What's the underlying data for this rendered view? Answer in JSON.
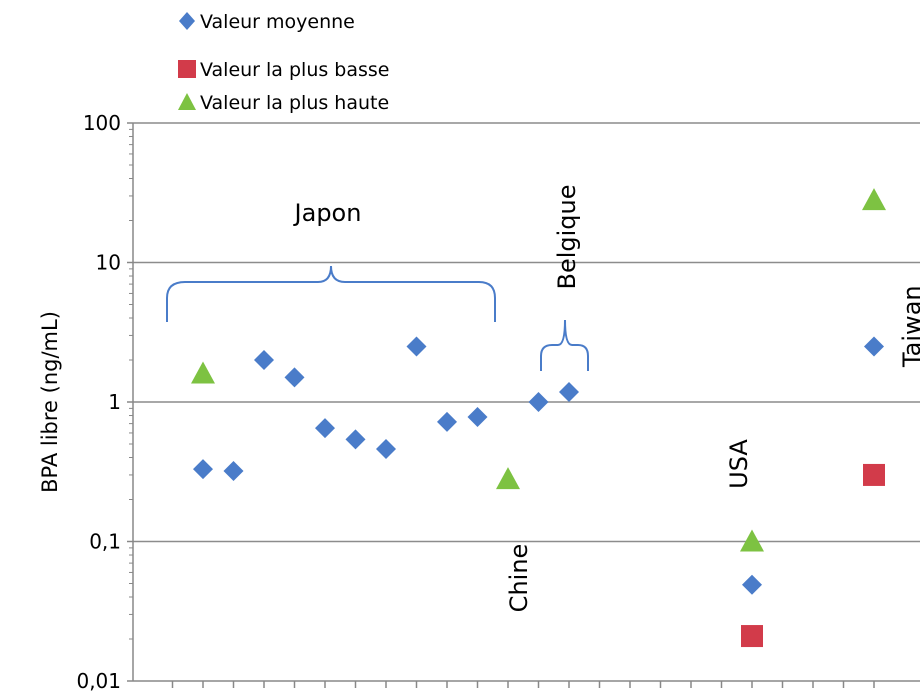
{
  "chart_data": {
    "type": "scatter",
    "title": "",
    "xlabel": "",
    "ylabel": "BPA libre (ng/mL)",
    "yscale": "log",
    "ylim": [
      0.01,
      100
    ],
    "y_ticks": [
      {
        "value": 100,
        "label": "100"
      },
      {
        "value": 10,
        "label": "10"
      },
      {
        "value": 1,
        "label": "1"
      },
      {
        "value": 0.1,
        "label": "0,1"
      },
      {
        "value": 0.01,
        "label": "0,01"
      }
    ],
    "grid": true,
    "legend_position": "top-left",
    "x_positions": 24,
    "series": [
      {
        "name": "Valeur moyenne",
        "marker": "diamond",
        "color": "#4a7cc9",
        "points": [
          {
            "x": 2,
            "y": 0.33
          },
          {
            "x": 3,
            "y": 0.32
          },
          {
            "x": 4,
            "y": 2.0
          },
          {
            "x": 5,
            "y": 1.5
          },
          {
            "x": 6,
            "y": 0.65
          },
          {
            "x": 7,
            "y": 0.54
          },
          {
            "x": 8,
            "y": 0.46
          },
          {
            "x": 9,
            "y": 2.5
          },
          {
            "x": 10,
            "y": 0.72
          },
          {
            "x": 11,
            "y": 0.78
          },
          {
            "x": 13,
            "y": 1.0
          },
          {
            "x": 14,
            "y": 1.18
          },
          {
            "x": 20,
            "y": 0.049
          },
          {
            "x": 24,
            "y": 2.5
          }
        ]
      },
      {
        "name": "Valeur la plus basse",
        "marker": "square",
        "color": "#d23b4a",
        "points": [
          {
            "x": 20,
            "y": 0.021
          },
          {
            "x": 24,
            "y": 0.3
          }
        ]
      },
      {
        "name": "Valeur la plus haute",
        "marker": "triangle",
        "color": "#7dc242",
        "points": [
          {
            "x": 2,
            "y": 1.6
          },
          {
            "x": 12,
            "y": 0.28
          },
          {
            "x": 20,
            "y": 0.1
          },
          {
            "x": 24,
            "y": 28
          }
        ]
      }
    ],
    "annotations": [
      {
        "text": "Japon",
        "bracket": "horizontal"
      },
      {
        "text": "Belgique",
        "bracket": "horizontal",
        "rotated": true
      },
      {
        "text": "Chine",
        "rotated": true
      },
      {
        "text": "USA",
        "rotated": true
      },
      {
        "text": "Taiwan",
        "rotated": true
      }
    ]
  }
}
